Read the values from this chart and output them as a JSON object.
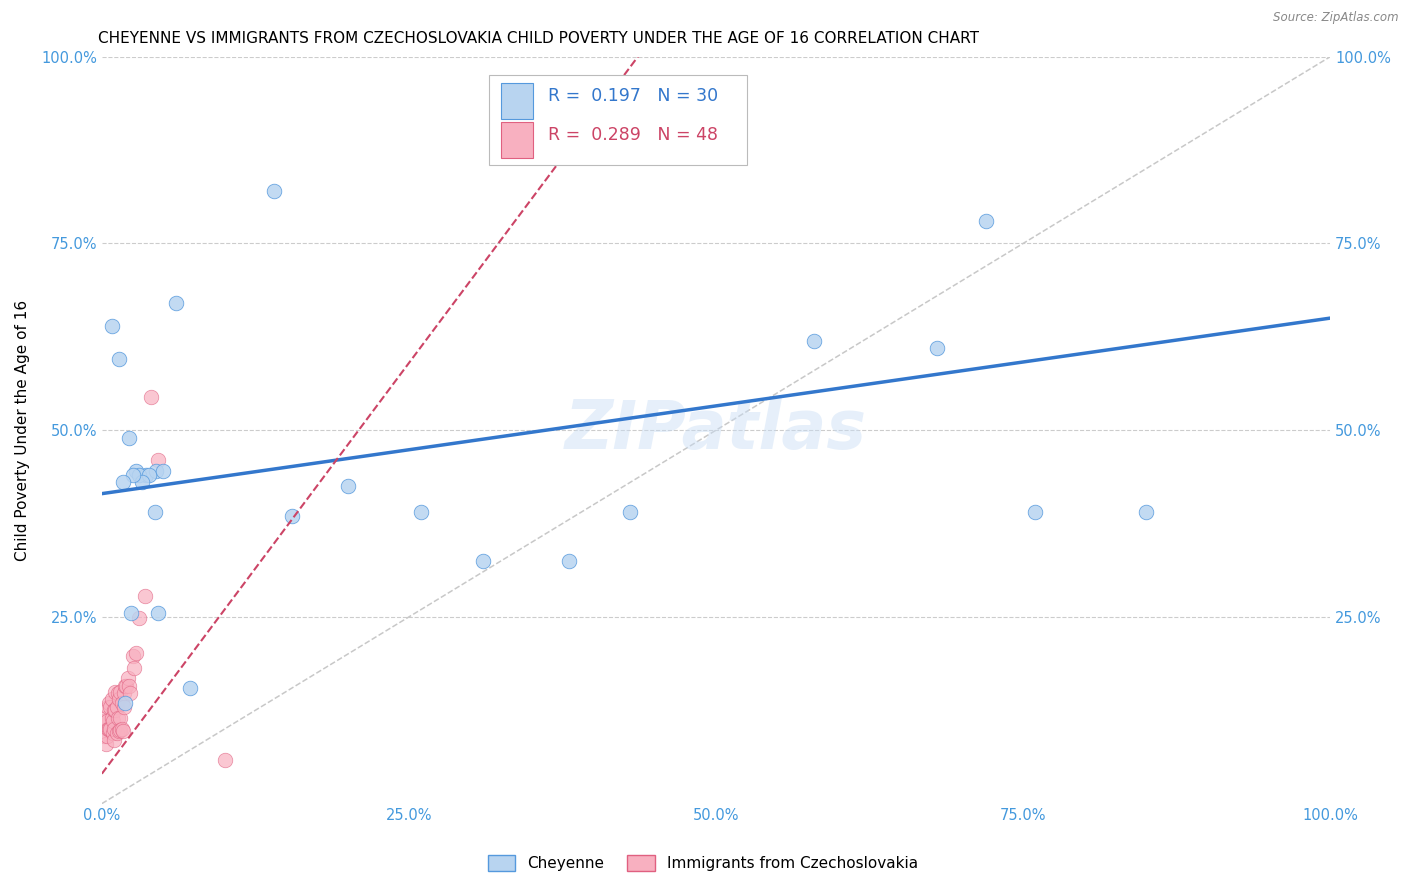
{
  "title": "CHEYENNE VS IMMIGRANTS FROM CZECHOSLOVAKIA CHILD POVERTY UNDER THE AGE OF 16 CORRELATION CHART",
  "source": "Source: ZipAtlas.com",
  "ylabel": "Child Poverty Under the Age of 16",
  "watermark": "ZIPatlas",
  "cheyenne": {
    "R": 0.197,
    "N": 30,
    "color": "#b8d4f0",
    "edge_color": "#5599dd",
    "line_color": "#3377cc",
    "label": "Cheyenne",
    "x": [
      0.028,
      0.036,
      0.044,
      0.008,
      0.014,
      0.022,
      0.03,
      0.038,
      0.05,
      0.14,
      0.2,
      0.68,
      0.72,
      0.58,
      0.38,
      0.31,
      0.155,
      0.019,
      0.024,
      0.046,
      0.072,
      0.85,
      0.043,
      0.033,
      0.025,
      0.017,
      0.06,
      0.26,
      0.43,
      0.76
    ],
    "y": [
      0.445,
      0.44,
      0.445,
      0.64,
      0.595,
      0.49,
      0.44,
      0.44,
      0.445,
      0.82,
      0.425,
      0.61,
      0.78,
      0.62,
      0.325,
      0.325,
      0.385,
      0.135,
      0.255,
      0.255,
      0.155,
      0.39,
      0.39,
      0.43,
      0.44,
      0.43,
      0.67,
      0.39,
      0.39,
      0.39
    ]
  },
  "immigrants": {
    "R": 0.289,
    "N": 48,
    "color": "#f8b0c0",
    "edge_color": "#e06080",
    "line_color": "#cc4466",
    "label": "Immigrants from Czechoslovakia",
    "x": [
      0.002,
      0.002,
      0.003,
      0.003,
      0.004,
      0.004,
      0.005,
      0.005,
      0.006,
      0.006,
      0.007,
      0.007,
      0.008,
      0.008,
      0.009,
      0.009,
      0.01,
      0.01,
      0.01,
      0.011,
      0.011,
      0.012,
      0.012,
      0.013,
      0.013,
      0.014,
      0.014,
      0.015,
      0.015,
      0.015,
      0.016,
      0.016,
      0.017,
      0.018,
      0.018,
      0.019,
      0.02,
      0.021,
      0.022,
      0.023,
      0.025,
      0.026,
      0.028,
      0.03,
      0.035,
      0.04,
      0.046,
      0.1
    ],
    "y": [
      0.09,
      0.11,
      0.08,
      0.115,
      0.09,
      0.11,
      0.1,
      0.13,
      0.1,
      0.135,
      0.1,
      0.13,
      0.115,
      0.14,
      0.095,
      0.11,
      0.085,
      0.1,
      0.125,
      0.125,
      0.15,
      0.095,
      0.13,
      0.115,
      0.148,
      0.097,
      0.14,
      0.115,
      0.15,
      0.098,
      0.135,
      0.1,
      0.097,
      0.13,
      0.148,
      0.158,
      0.158,
      0.168,
      0.158,
      0.148,
      0.198,
      0.182,
      0.202,
      0.248,
      0.278,
      0.545,
      0.46,
      0.058
    ]
  },
  "xlim": [
    0.0,
    1.0
  ],
  "ylim": [
    0.0,
    1.0
  ],
  "xticks": [
    0.0,
    0.25,
    0.5,
    0.75,
    1.0
  ],
  "yticks": [
    0.25,
    0.5,
    0.75,
    1.0
  ],
  "xticklabels": [
    "0.0%",
    "25.0%",
    "50.0%",
    "75.0%",
    "100.0%"
  ],
  "left_yticklabels": [
    "25.0%",
    "50.0%",
    "75.0%",
    "100.0%"
  ],
  "right_yticks": [
    0.25,
    0.5,
    0.75,
    1.0
  ],
  "right_yticklabels": [
    "25.0%",
    "50.0%",
    "75.0%",
    "100.0%"
  ],
  "background_color": "#ffffff",
  "grid_color": "#cccccc",
  "title_fontsize": 11,
  "axis_label_fontsize": 11,
  "tick_fontsize": 10.5,
  "tick_color": "#4499dd",
  "marker_size": 110
}
